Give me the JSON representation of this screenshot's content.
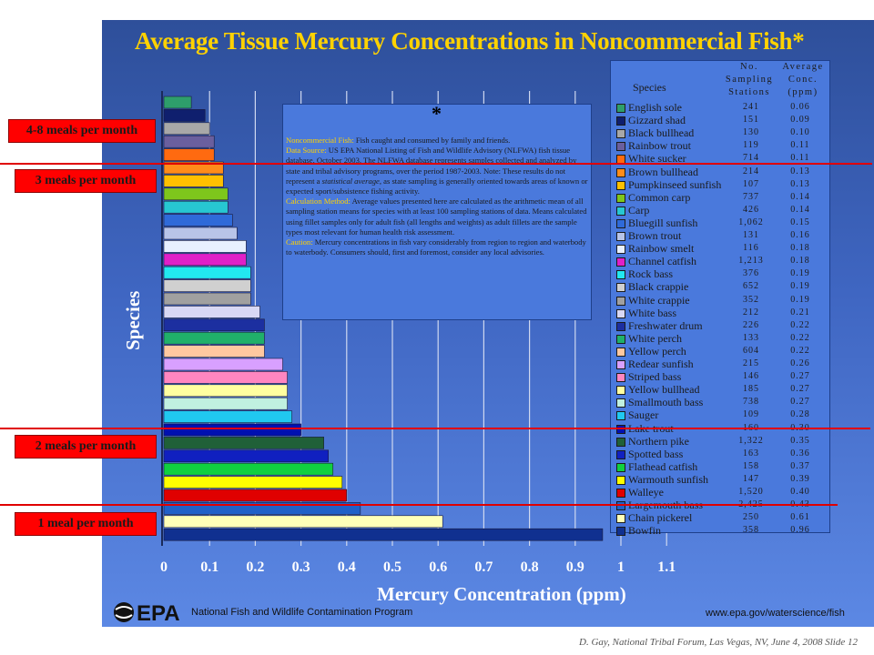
{
  "title": "Average Tissue Mercury Concentrations in Noncommercial Fish*",
  "note": {
    "star": "*",
    "p1_head": "Noncommercial Fish:",
    "p1_body": " Fish caught and consumed by family and friends.",
    "p2_head": "Data Source:",
    "p2_body": " US EPA National Listing of Fish and Wildlife Advisory (NLFWA) fish tissue database, October 2003. The NLFWA database represents samples collected and analyzed by state and tribal advisory programs, over the period 1987-2003. Note: These results do not represent a ",
    "p2_ital": "statistical average",
    "p2_tail": ", as state sampling is generally oriented towards areas of known or expected sport/subsistence fishing activity.",
    "p3_head": "Calculation Method:",
    "p3_body": " Average values presented here are calculated as the arithmetic mean of all sampling station means for species with at least 100 sampling stations of data. Means calculated using fillet samples only for adult fish (all lengths and weights) as adult fillets are the sample types most relevant for human health risk assessment.",
    "p4_head": "Caution:",
    "p4_body": " Mercury concentrations in fish vary considerably from region to region and waterbody to waterbody. Consumers should, first and foremost, consider any local advisories."
  },
  "meal_bands": [
    "4-8 meals per month",
    "3 meals per month",
    "2 meals per month",
    "1 meal per month"
  ],
  "legend": {
    "species_header": "Species",
    "stations_header": [
      "No.",
      "Sampling",
      "Stations"
    ],
    "conc_header": [
      "Average",
      "Conc.",
      "(ppm)"
    ]
  },
  "chart_data": {
    "type": "bar",
    "orientation": "horizontal",
    "xlabel": "Mercury Concentration (ppm)",
    "ylabel": "Species",
    "xlim": [
      0,
      1.1
    ],
    "xticks": [
      "0",
      "0.1",
      "0.2",
      "0.3",
      "0.4",
      "0.5",
      "0.6",
      "0.7",
      "0.8",
      "0.9",
      "1",
      "1.1"
    ],
    "grid": true,
    "categories": [
      "English sole",
      "Gizzard shad",
      "Black bullhead",
      "Rainbow trout",
      "White sucker",
      "Brown bullhead",
      "Pumpkinseed sunfish",
      "Common carp",
      "Carp",
      "Bluegill sunfish",
      "Brown trout",
      "Rainbow smelt",
      "Channel catfish",
      "Rock bass",
      "Black crappie",
      "White crappie",
      "White bass",
      "Freshwater drum",
      "White perch",
      "Yellow perch",
      "Redear sunfish",
      "Striped bass",
      "Yellow bullhead",
      "Smallmouth bass",
      "Sauger",
      "Lake trout",
      "Northern pike",
      "Spotted bass",
      "Flathead catfish",
      "Warmouth sunfish",
      "Walleye",
      "Largemouth bass",
      "Chain pickerel",
      "Bowfin"
    ],
    "stations": [
      "241",
      "151",
      "130",
      "119",
      "714",
      "214",
      "107",
      "737",
      "426",
      "1,062",
      "131",
      "116",
      "1,213",
      "376",
      "652",
      "352",
      "212",
      "226",
      "133",
      "604",
      "215",
      "146",
      "185",
      "738",
      "109",
      "160",
      "1,322",
      "163",
      "158",
      "147",
      "1,520",
      "2,425",
      "250",
      "358"
    ],
    "values": [
      0.06,
      0.09,
      0.1,
      0.11,
      0.11,
      0.13,
      0.13,
      0.14,
      0.14,
      0.15,
      0.16,
      0.18,
      0.18,
      0.19,
      0.19,
      0.19,
      0.21,
      0.22,
      0.22,
      0.22,
      0.26,
      0.27,
      0.27,
      0.27,
      0.28,
      0.3,
      0.35,
      0.36,
      0.37,
      0.39,
      0.4,
      0.43,
      0.61,
      0.96
    ],
    "value_labels": [
      "0.06",
      "0.09",
      "0.10",
      "0.11",
      "0.11",
      "0.13",
      "0.13",
      "0.14",
      "0.14",
      "0.15",
      "0.16",
      "0.18",
      "0.18",
      "0.19",
      "0.19",
      "0.19",
      "0.21",
      "0.22",
      "0.22",
      "0.22",
      "0.26",
      "0.27",
      "0.27",
      "0.27",
      "0.28",
      "0.30",
      "0.35",
      "0.36",
      "0.37",
      "0.39",
      "0.40",
      "0.43",
      "0.61",
      "0.96"
    ],
    "colors": [
      "#2e9e6b",
      "#0f1f6e",
      "#a8a8a8",
      "#6a5f9e",
      "#ff6a10",
      "#ff8c1a",
      "#ffc000",
      "#7ec61c",
      "#27c7d2",
      "#2f6ad9",
      "#b8c4e8",
      "#e8f0ff",
      "#e020c8",
      "#22e8f0",
      "#d0d0d0",
      "#a0a0a0",
      "#d8d8f4",
      "#1c2fa0",
      "#20b06a",
      "#ffc8a0",
      "#d8a0ff",
      "#ff86c0",
      "#ffffa0",
      "#c0f0e0",
      "#20c8f0",
      "#0010b0",
      "#206038",
      "#1020c0",
      "#10d040",
      "#ffff00",
      "#e00000",
      "#2060c8",
      "#ffffb8",
      "#103090"
    ]
  },
  "footer": {
    "epa_org": "National Fish and Wildlife Contamination Program",
    "url": "www.epa.gov/waterscience/fish",
    "credit": "D. Gay, National Tribal Forum, Las Vegas, NV, June 4, 2008 Slide 12"
  }
}
